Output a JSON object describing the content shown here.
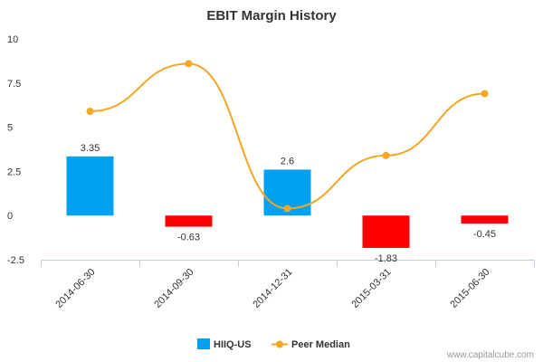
{
  "chart_data": {
    "type": "bar",
    "title": "EBIT Margin History",
    "categories": [
      "2014-06-30",
      "2014-09-30",
      "2014-12-31",
      "2015-03-31",
      "2015-06-30"
    ],
    "ylim": [
      -2.5,
      10
    ],
    "yticks": [
      {
        "value": 10,
        "label": "10"
      },
      {
        "value": 7.5,
        "label": "7.5"
      },
      {
        "value": 5,
        "label": "5"
      },
      {
        "value": 2.5,
        "label": "2.5"
      },
      {
        "value": 0,
        "label": "0"
      },
      {
        "value": -2.5,
        "label": "-2.5"
      }
    ],
    "grid": false,
    "legend_position": "bottom",
    "series": [
      {
        "name": "HIIQ-US",
        "type": "bar",
        "values": [
          3.35,
          -0.63,
          2.6,
          -1.83,
          -0.45
        ],
        "labels": [
          "3.35",
          "-0.63",
          "2.6",
          "-1.83",
          "-0.45"
        ],
        "color_positive": "#00a2f0",
        "color_negative": "#ff0000"
      },
      {
        "name": "Peer Median",
        "type": "line",
        "values": [
          5.9,
          8.6,
          0.4,
          3.4,
          6.9
        ],
        "color": "#f5a623"
      }
    ]
  },
  "credit": "www.capitalcube.com"
}
